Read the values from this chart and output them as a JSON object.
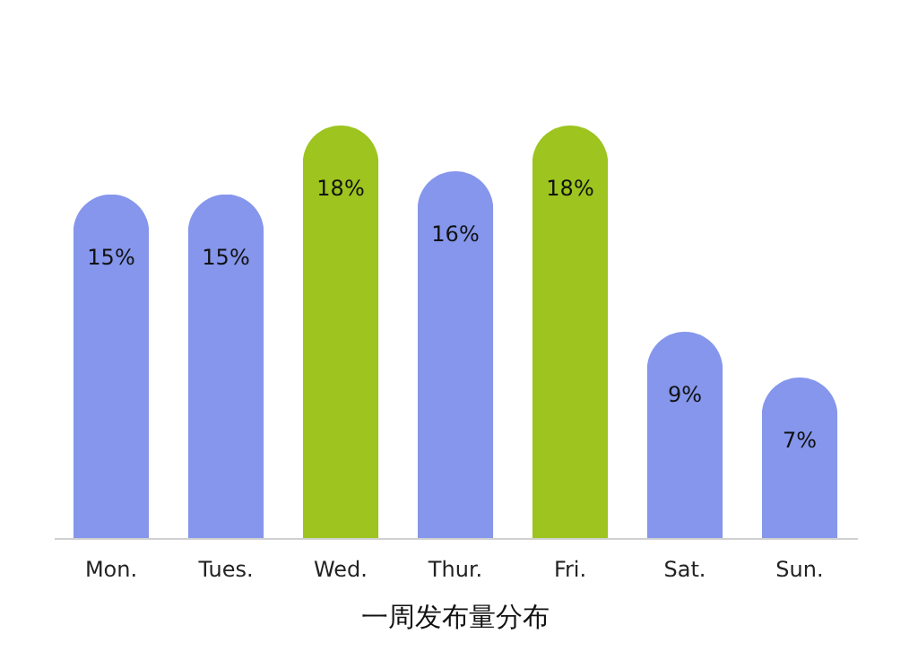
{
  "chart_data": {
    "type": "bar",
    "title": "一周发布量分布",
    "categories": [
      "Mon.",
      "Tues.",
      "Wed.",
      "Thur.",
      "Fri.",
      "Sat.",
      "Sun."
    ],
    "values": [
      15,
      15,
      18,
      16,
      18,
      9,
      7
    ],
    "colors": [
      "#8596ec",
      "#8596ec",
      "#9dc41f",
      "#8596ec",
      "#9dc41f",
      "#8596ec",
      "#8596ec"
    ],
    "value_labels": [
      "15%",
      "15%",
      "18%",
      "16%",
      "18%",
      "9%",
      "7%"
    ],
    "grid": false
  }
}
